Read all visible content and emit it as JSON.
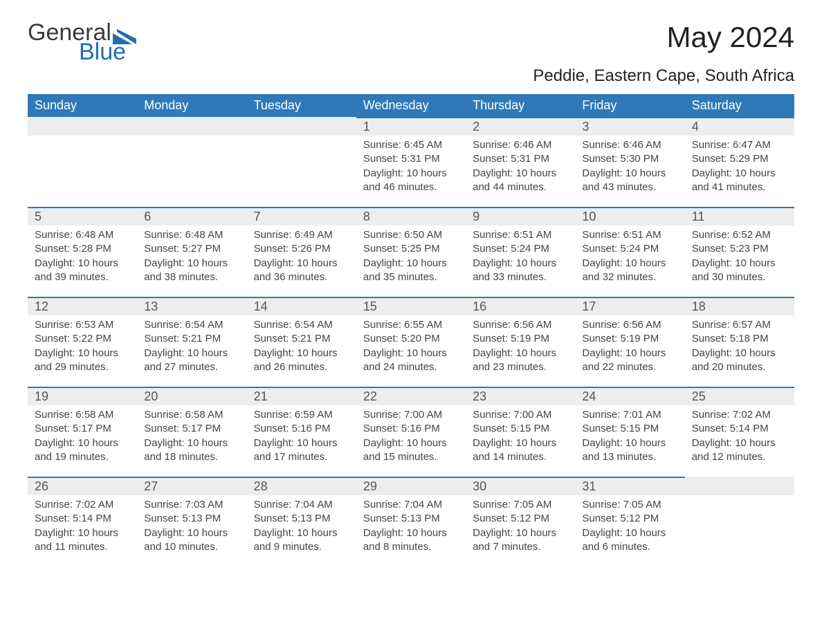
{
  "logo": {
    "text_general": "General",
    "text_blue": "Blue",
    "mark_color": "#1f6fb2"
  },
  "title": "May 2024",
  "subtitle": "Peddie, Eastern Cape, South Africa",
  "colors": {
    "header_bg": "#2f79b9",
    "header_text": "#ffffff",
    "daynum_bg": "#ededed",
    "rule": "#2f79b9",
    "body_text": "#444444",
    "background": "#ffffff"
  },
  "fonts": {
    "title_pt": 42,
    "subtitle_pt": 24,
    "header_pt": 18,
    "daynum_pt": 18,
    "body_pt": 15
  },
  "week_headers": [
    "Sunday",
    "Monday",
    "Tuesday",
    "Wednesday",
    "Thursday",
    "Friday",
    "Saturday"
  ],
  "weeks": [
    [
      null,
      null,
      null,
      {
        "d": "1",
        "sunrise": "6:45 AM",
        "sunset": "5:31 PM",
        "dlh": "10",
        "dlm": "46"
      },
      {
        "d": "2",
        "sunrise": "6:46 AM",
        "sunset": "5:31 PM",
        "dlh": "10",
        "dlm": "44"
      },
      {
        "d": "3",
        "sunrise": "6:46 AM",
        "sunset": "5:30 PM",
        "dlh": "10",
        "dlm": "43"
      },
      {
        "d": "4",
        "sunrise": "6:47 AM",
        "sunset": "5:29 PM",
        "dlh": "10",
        "dlm": "41"
      }
    ],
    [
      {
        "d": "5",
        "sunrise": "6:48 AM",
        "sunset": "5:28 PM",
        "dlh": "10",
        "dlm": "39"
      },
      {
        "d": "6",
        "sunrise": "6:48 AM",
        "sunset": "5:27 PM",
        "dlh": "10",
        "dlm": "38"
      },
      {
        "d": "7",
        "sunrise": "6:49 AM",
        "sunset": "5:26 PM",
        "dlh": "10",
        "dlm": "36"
      },
      {
        "d": "8",
        "sunrise": "6:50 AM",
        "sunset": "5:25 PM",
        "dlh": "10",
        "dlm": "35"
      },
      {
        "d": "9",
        "sunrise": "6:51 AM",
        "sunset": "5:24 PM",
        "dlh": "10",
        "dlm": "33"
      },
      {
        "d": "10",
        "sunrise": "6:51 AM",
        "sunset": "5:24 PM",
        "dlh": "10",
        "dlm": "32"
      },
      {
        "d": "11",
        "sunrise": "6:52 AM",
        "sunset": "5:23 PM",
        "dlh": "10",
        "dlm": "30"
      }
    ],
    [
      {
        "d": "12",
        "sunrise": "6:53 AM",
        "sunset": "5:22 PM",
        "dlh": "10",
        "dlm": "29"
      },
      {
        "d": "13",
        "sunrise": "6:54 AM",
        "sunset": "5:21 PM",
        "dlh": "10",
        "dlm": "27"
      },
      {
        "d": "14",
        "sunrise": "6:54 AM",
        "sunset": "5:21 PM",
        "dlh": "10",
        "dlm": "26"
      },
      {
        "d": "15",
        "sunrise": "6:55 AM",
        "sunset": "5:20 PM",
        "dlh": "10",
        "dlm": "24"
      },
      {
        "d": "16",
        "sunrise": "6:56 AM",
        "sunset": "5:19 PM",
        "dlh": "10",
        "dlm": "23"
      },
      {
        "d": "17",
        "sunrise": "6:56 AM",
        "sunset": "5:19 PM",
        "dlh": "10",
        "dlm": "22"
      },
      {
        "d": "18",
        "sunrise": "6:57 AM",
        "sunset": "5:18 PM",
        "dlh": "10",
        "dlm": "20"
      }
    ],
    [
      {
        "d": "19",
        "sunrise": "6:58 AM",
        "sunset": "5:17 PM",
        "dlh": "10",
        "dlm": "19"
      },
      {
        "d": "20",
        "sunrise": "6:58 AM",
        "sunset": "5:17 PM",
        "dlh": "10",
        "dlm": "18"
      },
      {
        "d": "21",
        "sunrise": "6:59 AM",
        "sunset": "5:16 PM",
        "dlh": "10",
        "dlm": "17"
      },
      {
        "d": "22",
        "sunrise": "7:00 AM",
        "sunset": "5:16 PM",
        "dlh": "10",
        "dlm": "15"
      },
      {
        "d": "23",
        "sunrise": "7:00 AM",
        "sunset": "5:15 PM",
        "dlh": "10",
        "dlm": "14"
      },
      {
        "d": "24",
        "sunrise": "7:01 AM",
        "sunset": "5:15 PM",
        "dlh": "10",
        "dlm": "13"
      },
      {
        "d": "25",
        "sunrise": "7:02 AM",
        "sunset": "5:14 PM",
        "dlh": "10",
        "dlm": "12"
      }
    ],
    [
      {
        "d": "26",
        "sunrise": "7:02 AM",
        "sunset": "5:14 PM",
        "dlh": "10",
        "dlm": "11"
      },
      {
        "d": "27",
        "sunrise": "7:03 AM",
        "sunset": "5:13 PM",
        "dlh": "10",
        "dlm": "10"
      },
      {
        "d": "28",
        "sunrise": "7:04 AM",
        "sunset": "5:13 PM",
        "dlh": "10",
        "dlm": "9"
      },
      {
        "d": "29",
        "sunrise": "7:04 AM",
        "sunset": "5:13 PM",
        "dlh": "10",
        "dlm": "8"
      },
      {
        "d": "30",
        "sunrise": "7:05 AM",
        "sunset": "5:12 PM",
        "dlh": "10",
        "dlm": "7"
      },
      {
        "d": "31",
        "sunrise": "7:05 AM",
        "sunset": "5:12 PM",
        "dlh": "10",
        "dlm": "6"
      },
      null
    ]
  ]
}
